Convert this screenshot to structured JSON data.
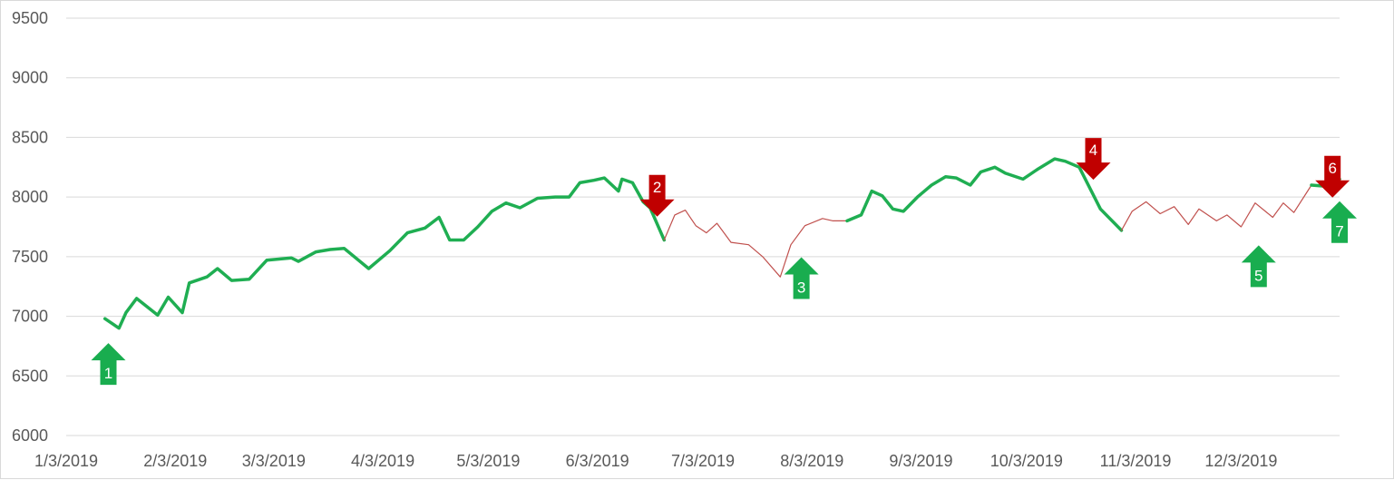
{
  "chart_data": {
    "type": "line",
    "title": "",
    "xlabel": "",
    "ylabel": "",
    "ylim": [
      6000,
      9500
    ],
    "yticks": [
      6000,
      6500,
      7000,
      7500,
      8000,
      8500,
      9000,
      9500
    ],
    "xlim": [
      "2019-01-03",
      "2019-12-31"
    ],
    "xtick_dates": [
      "2019-01-03",
      "2019-02-03",
      "2019-03-03",
      "2019-04-03",
      "2019-05-03",
      "2019-06-03",
      "2019-07-03",
      "2019-08-03",
      "2019-09-03",
      "2019-10-03",
      "2019-11-03",
      "2019-12-03"
    ],
    "xtick_labels": [
      "1/3/2019",
      "2/3/2019",
      "3/3/2019",
      "4/3/2019",
      "5/3/2019",
      "6/3/2019",
      "7/3/2019",
      "8/3/2019",
      "9/3/2019",
      "10/3/2019",
      "11/3/2019",
      "12/3/2019"
    ],
    "grid": true,
    "legend": "none",
    "colors": {
      "uptrend": "#1fae52",
      "downtrend": "#c0504d",
      "up_arrow": "#19ad4f",
      "down_arrow": "#c00000",
      "grid": "#d9d9d9",
      "axis_text": "#595959"
    },
    "series": [
      {
        "style": "uptrend",
        "points": [
          [
            "2019-01-14",
            6980
          ],
          [
            "2019-01-18",
            6900
          ],
          [
            "2019-01-20",
            7030
          ],
          [
            "2019-01-23",
            7150
          ],
          [
            "2019-01-29",
            7010
          ],
          [
            "2019-02-01",
            7160
          ],
          [
            "2019-02-05",
            7030
          ],
          [
            "2019-02-07",
            7280
          ],
          [
            "2019-02-12",
            7330
          ],
          [
            "2019-02-15",
            7400
          ],
          [
            "2019-02-19",
            7300
          ],
          [
            "2019-02-24",
            7310
          ],
          [
            "2019-03-01",
            7470
          ],
          [
            "2019-03-08",
            7490
          ],
          [
            "2019-03-10",
            7460
          ],
          [
            "2019-03-15",
            7540
          ],
          [
            "2019-03-19",
            7560
          ],
          [
            "2019-03-23",
            7570
          ],
          [
            "2019-03-30",
            7400
          ],
          [
            "2019-04-05",
            7550
          ],
          [
            "2019-04-10",
            7700
          ],
          [
            "2019-04-15",
            7740
          ],
          [
            "2019-04-19",
            7830
          ],
          [
            "2019-04-22",
            7640
          ],
          [
            "2019-04-26",
            7640
          ],
          [
            "2019-04-30",
            7750
          ],
          [
            "2019-05-04",
            7880
          ],
          [
            "2019-05-08",
            7950
          ],
          [
            "2019-05-12",
            7910
          ],
          [
            "2019-05-17",
            7990
          ],
          [
            "2019-05-22",
            8000
          ],
          [
            "2019-05-26",
            8000
          ],
          [
            "2019-05-29",
            8120
          ],
          [
            "2019-06-02",
            8140
          ],
          [
            "2019-06-05",
            8160
          ],
          [
            "2019-06-09",
            8050
          ],
          [
            "2019-06-10",
            8150
          ],
          [
            "2019-06-13",
            8120
          ],
          [
            "2019-06-16",
            7960
          ],
          [
            "2019-06-18",
            7910
          ],
          [
            "2019-06-22",
            7640
          ]
        ]
      },
      {
        "style": "downtrend",
        "points": [
          [
            "2019-06-22",
            7640
          ],
          [
            "2019-06-25",
            7850
          ],
          [
            "2019-06-28",
            7890
          ],
          [
            "2019-07-01",
            7760
          ],
          [
            "2019-07-04",
            7700
          ],
          [
            "2019-07-07",
            7780
          ],
          [
            "2019-07-11",
            7620
          ],
          [
            "2019-07-16",
            7600
          ],
          [
            "2019-07-20",
            7500
          ],
          [
            "2019-07-25",
            7330
          ],
          [
            "2019-07-28",
            7600
          ],
          [
            "2019-08-01",
            7760
          ],
          [
            "2019-08-06",
            7820
          ],
          [
            "2019-08-09",
            7800
          ],
          [
            "2019-08-13",
            7800
          ]
        ]
      },
      {
        "style": "uptrend",
        "points": [
          [
            "2019-08-13",
            7800
          ],
          [
            "2019-08-17",
            7850
          ],
          [
            "2019-08-20",
            8050
          ],
          [
            "2019-08-23",
            8010
          ],
          [
            "2019-08-26",
            7900
          ],
          [
            "2019-08-29",
            7880
          ],
          [
            "2019-09-02",
            8000
          ],
          [
            "2019-09-06",
            8100
          ],
          [
            "2019-09-10",
            8170
          ],
          [
            "2019-09-13",
            8160
          ],
          [
            "2019-09-17",
            8100
          ],
          [
            "2019-09-20",
            8210
          ],
          [
            "2019-09-24",
            8250
          ],
          [
            "2019-09-27",
            8200
          ],
          [
            "2019-10-02",
            8150
          ],
          [
            "2019-10-06",
            8230
          ],
          [
            "2019-10-11",
            8320
          ],
          [
            "2019-10-14",
            8300
          ],
          [
            "2019-10-18",
            8250
          ],
          [
            "2019-10-24",
            7900
          ],
          [
            "2019-10-30",
            7720
          ]
        ]
      },
      {
        "style": "downtrend",
        "points": [
          [
            "2019-10-30",
            7720
          ],
          [
            "2019-11-02",
            7880
          ],
          [
            "2019-11-06",
            7960
          ],
          [
            "2019-11-10",
            7860
          ],
          [
            "2019-11-14",
            7920
          ],
          [
            "2019-11-18",
            7770
          ],
          [
            "2019-11-21",
            7900
          ],
          [
            "2019-11-26",
            7800
          ],
          [
            "2019-11-29",
            7850
          ],
          [
            "2019-12-03",
            7750
          ],
          [
            "2019-12-07",
            7950
          ],
          [
            "2019-12-12",
            7830
          ],
          [
            "2019-12-15",
            7950
          ],
          [
            "2019-12-18",
            7870
          ],
          [
            "2019-12-23",
            8100
          ]
        ]
      },
      {
        "style": "uptrend",
        "points": [
          [
            "2019-12-23",
            8100
          ],
          [
            "2019-12-27",
            8090
          ],
          [
            "2019-12-31",
            8150
          ]
        ]
      }
    ],
    "markers": [
      {
        "label": "1",
        "direction": "up",
        "date": "2019-01-15",
        "value": 6600
      },
      {
        "label": "2",
        "direction": "down",
        "date": "2019-06-20",
        "value": 8010
      },
      {
        "label": "3",
        "direction": "up",
        "date": "2019-07-31",
        "value": 7320
      },
      {
        "label": "4",
        "direction": "down",
        "date": "2019-10-22",
        "value": 8320
      },
      {
        "label": "5",
        "direction": "up",
        "date": "2019-12-08",
        "value": 7420
      },
      {
        "label": "6",
        "direction": "down",
        "date": "2019-12-29",
        "value": 8170
      },
      {
        "label": "7",
        "direction": "up",
        "date": "2019-12-31",
        "value": 7790
      }
    ]
  }
}
